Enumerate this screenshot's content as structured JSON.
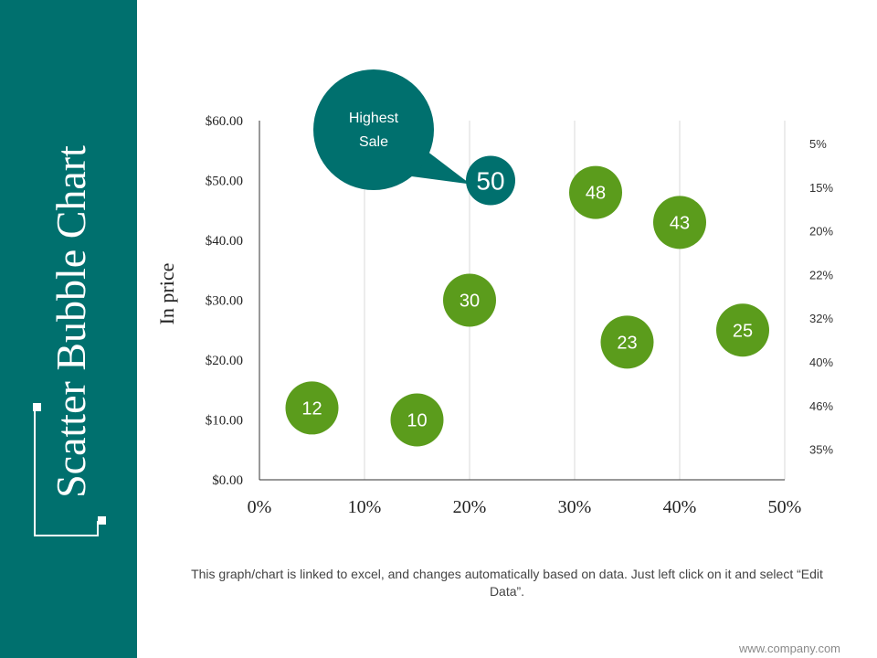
{
  "slide": {
    "title": "Scatter Bubble Chart",
    "caption": "This graph/chart is linked to excel, and changes automatically based on data. Just left click on it and select “Edit Data”.",
    "footer_url": "www.company.com"
  },
  "colors": {
    "teal": "#00706e",
    "green": "#5b9c1c",
    "white": "#ffffff",
    "axis": "#333333",
    "grid": "#d9d9d9"
  },
  "chart_data": {
    "type": "scatter",
    "title": "",
    "xlabel": "",
    "ylabel": "In price",
    "xlim": [
      0,
      50
    ],
    "ylim": [
      0,
      60
    ],
    "x_ticks": [
      "0%",
      "10%",
      "20%",
      "30%",
      "40%",
      "50%"
    ],
    "y_ticks": [
      "$0.00",
      "$10.00",
      "$20.00",
      "$30.00",
      "$40.00",
      "$50.00",
      "$60.00"
    ],
    "grid": "vertical",
    "right_labels": [
      "5%",
      "15%",
      "20%",
      "22%",
      "32%",
      "40%",
      "46%",
      "35%"
    ],
    "points": [
      {
        "label": "12",
        "x": 5,
        "y": 12,
        "highlight": false
      },
      {
        "label": "10",
        "x": 15,
        "y": 10,
        "highlight": false
      },
      {
        "label": "30",
        "x": 20,
        "y": 30,
        "highlight": false
      },
      {
        "label": "50",
        "x": 22,
        "y": 50,
        "highlight": true
      },
      {
        "label": "48",
        "x": 32,
        "y": 48,
        "highlight": false
      },
      {
        "label": "23",
        "x": 35,
        "y": 23,
        "highlight": false
      },
      {
        "label": "43",
        "x": 40,
        "y": 43,
        "highlight": false
      },
      {
        "label": "25",
        "x": 46,
        "y": 25,
        "highlight": false
      }
    ],
    "annotation": {
      "text": [
        "Highest",
        "Sale"
      ],
      "target": "50"
    }
  }
}
